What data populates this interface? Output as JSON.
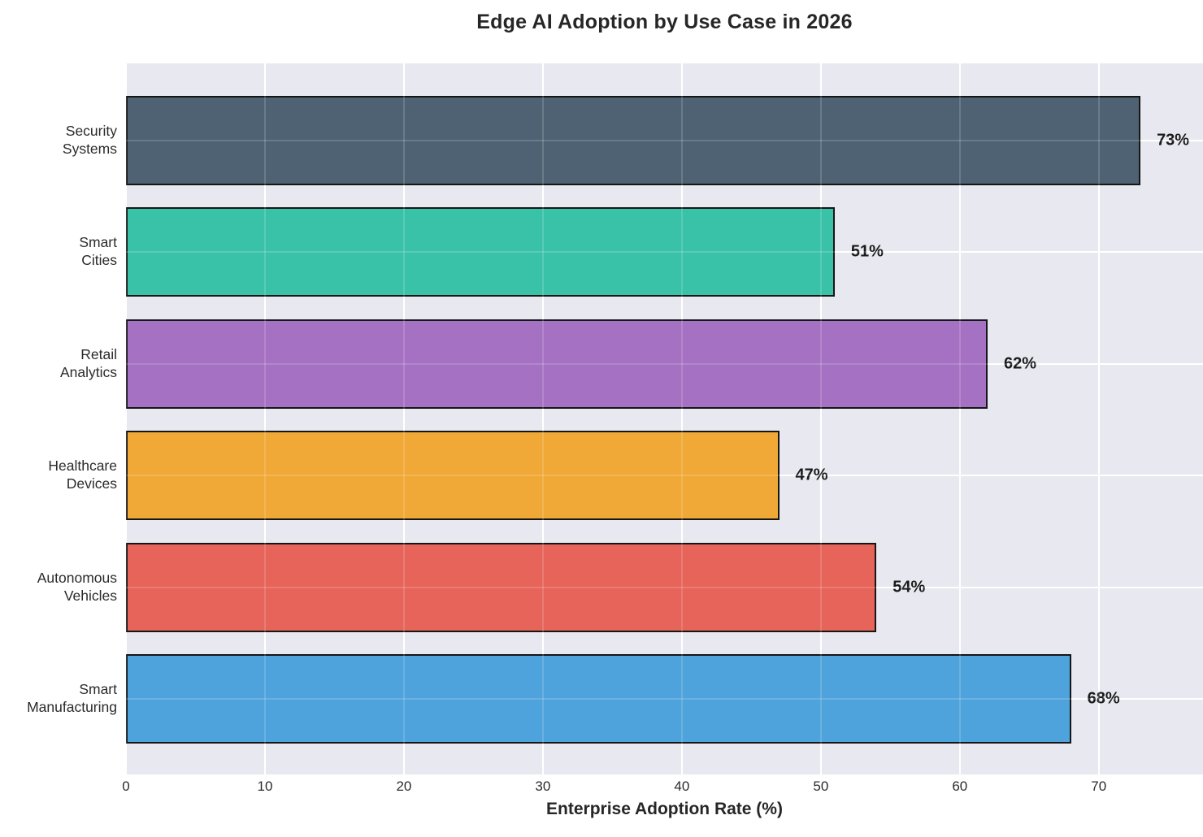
{
  "chart_data": {
    "type": "bar",
    "orientation": "horizontal",
    "title": "Edge AI Adoption by Use Case in 2026",
    "xlabel": "Enterprise Adoption Rate (%)",
    "ylabel": "",
    "categories": [
      "Security\nSystems",
      "Smart\nCities",
      "Retail\nAnalytics",
      "Healthcare\nDevices",
      "Autonomous\nVehicles",
      "Smart\nManufacturing"
    ],
    "values": [
      73,
      51,
      62,
      47,
      54,
      68
    ],
    "value_labels": [
      "73%",
      "51%",
      "62%",
      "47%",
      "54%",
      "68%"
    ],
    "bar_colors": [
      "#4e6273",
      "#3ac2a8",
      "#a571c3",
      "#f0a936",
      "#e6645a",
      "#4fa3dc"
    ],
    "bar_edge_color": "#161616",
    "xticks": [
      0,
      10,
      20,
      30,
      40,
      50,
      60,
      70
    ],
    "xlim": [
      0,
      77.5
    ],
    "grid": true,
    "gridline_color": "#ffffff",
    "plot_background": "#e8e8f0",
    "figure_background": "#ffffff"
  }
}
